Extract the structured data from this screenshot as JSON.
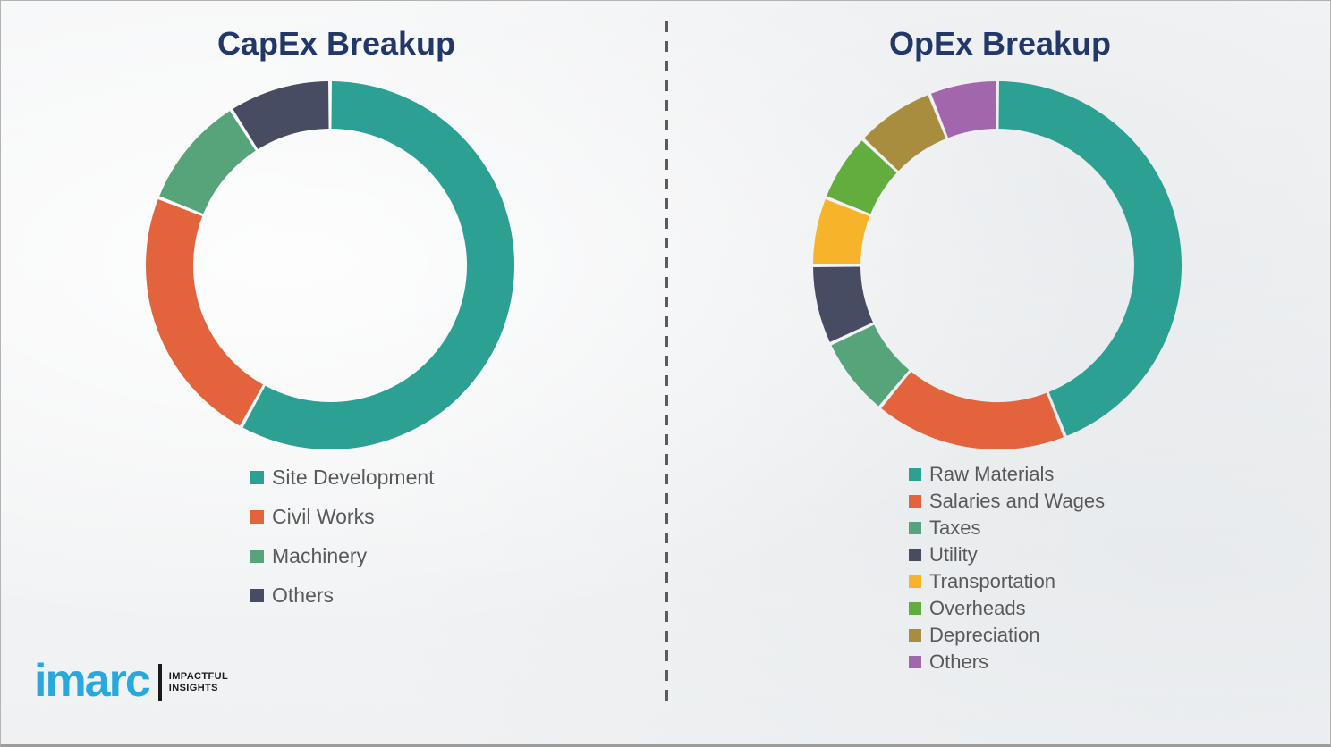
{
  "page": {
    "background_color": "#f3f4f5",
    "border_color": "#b3b3b3",
    "divider_color": "#5b5b5b",
    "title_color": "#23386a",
    "legend_text_color": "#595959"
  },
  "chart_data": [
    {
      "type": "pie",
      "subtype": "donut",
      "title": "CapEx Breakup",
      "legend_position": "below-left",
      "labels": [
        "Site Development",
        "Civil Works",
        "Machinery",
        "Others"
      ],
      "values": [
        58,
        23,
        10,
        9
      ],
      "colors": [
        "#2ba093",
        "#e2633c",
        "#57a47b",
        "#474c63"
      ],
      "unit": "percent-of-ring"
    },
    {
      "type": "pie",
      "subtype": "donut",
      "title": "OpEx Breakup",
      "legend_position": "below-left",
      "labels": [
        "Raw Materials",
        "Salaries and Wages",
        "Taxes",
        "Utility",
        "Transportation",
        "Overheads",
        "Depreciation",
        "Others"
      ],
      "values": [
        44,
        17,
        7,
        7,
        6,
        6,
        7,
        6
      ],
      "colors": [
        "#2ba093",
        "#e2633c",
        "#57a47b",
        "#474c63",
        "#f7b32a",
        "#63ad3e",
        "#a88d3e",
        "#a266ac"
      ],
      "unit": "percent-of-ring"
    }
  ],
  "logo": {
    "brand": "imarc",
    "tagline_line1": "IMPACTFUL",
    "tagline_line2": "INSIGHTS",
    "brand_color": "#29a8e0"
  }
}
